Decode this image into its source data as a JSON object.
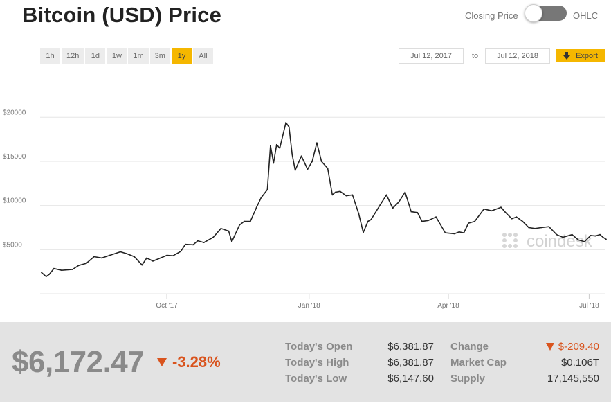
{
  "title": "Bitcoin (USD) Price",
  "toggle": {
    "left_label": "Closing Price",
    "right_label": "OHLC"
  },
  "ranges": [
    {
      "label": "1h",
      "active": false
    },
    {
      "label": "12h",
      "active": false
    },
    {
      "label": "1d",
      "active": false
    },
    {
      "label": "1w",
      "active": false
    },
    {
      "label": "1m",
      "active": false
    },
    {
      "label": "3m",
      "active": false
    },
    {
      "label": "1y",
      "active": true
    },
    {
      "label": "All",
      "active": false
    }
  ],
  "date_range": {
    "from": "Jul 12, 2017",
    "to_label": "to",
    "to": "Jul 12, 2018"
  },
  "export_label": "Export",
  "colors": {
    "accent": "#f5b700",
    "line": "#222222",
    "negative": "#d9541e",
    "muted": "#8a8a8a",
    "panel": "#e3e3e3"
  },
  "watermark": "coindesk",
  "chart_data": {
    "type": "line",
    "title": "Bitcoin (USD) Price",
    "x_range": [
      "2017-07-12",
      "2018-07-12"
    ],
    "ylim": [
      0,
      21000
    ],
    "y_ticks": [
      {
        "value": 5000,
        "label": "$5000"
      },
      {
        "value": 10000,
        "label": "$10000"
      },
      {
        "value": 15000,
        "label": "$15000"
      },
      {
        "value": 20000,
        "label": "$20000"
      }
    ],
    "x_ticks": [
      {
        "date": "2017-10-01",
        "label": "Oct '17"
      },
      {
        "date": "2018-01-01",
        "label": "Jan '18"
      },
      {
        "date": "2018-04-01",
        "label": "Apr '18"
      },
      {
        "date": "2018-07-01",
        "label": "Jul '18"
      }
    ],
    "grid": true,
    "series": [
      {
        "points": [
          [
            "2017-07-12",
            2400
          ],
          [
            "2017-07-15",
            1950
          ],
          [
            "2017-07-17",
            2200
          ],
          [
            "2017-07-20",
            2850
          ],
          [
            "2017-07-25",
            2650
          ],
          [
            "2017-08-01",
            2750
          ],
          [
            "2017-08-05",
            3200
          ],
          [
            "2017-08-10",
            3450
          ],
          [
            "2017-08-15",
            4200
          ],
          [
            "2017-08-20",
            4050
          ],
          [
            "2017-08-25",
            4350
          ],
          [
            "2017-09-01",
            4750
          ],
          [
            "2017-09-05",
            4550
          ],
          [
            "2017-09-10",
            4200
          ],
          [
            "2017-09-15",
            3250
          ],
          [
            "2017-09-18",
            4050
          ],
          [
            "2017-09-22",
            3700
          ],
          [
            "2017-10-01",
            4350
          ],
          [
            "2017-10-05",
            4300
          ],
          [
            "2017-10-10",
            4800
          ],
          [
            "2017-10-13",
            5600
          ],
          [
            "2017-10-18",
            5550
          ],
          [
            "2017-10-21",
            6000
          ],
          [
            "2017-10-25",
            5800
          ],
          [
            "2017-10-31",
            6400
          ],
          [
            "2017-11-05",
            7400
          ],
          [
            "2017-11-10",
            7100
          ],
          [
            "2017-11-12",
            5900
          ],
          [
            "2017-11-17",
            7800
          ],
          [
            "2017-11-20",
            8200
          ],
          [
            "2017-11-24",
            8200
          ],
          [
            "2017-11-28",
            9800
          ],
          [
            "2017-12-01",
            10900
          ],
          [
            "2017-12-05",
            11800
          ],
          [
            "2017-12-07",
            16800
          ],
          [
            "2017-12-09",
            14800
          ],
          [
            "2017-12-11",
            16900
          ],
          [
            "2017-12-13",
            16500
          ],
          [
            "2017-12-17",
            19400
          ],
          [
            "2017-12-19",
            18900
          ],
          [
            "2017-12-21",
            15800
          ],
          [
            "2017-12-23",
            14000
          ],
          [
            "2017-12-27",
            15600
          ],
          [
            "2017-12-31",
            14100
          ],
          [
            "2018-01-03",
            15000
          ],
          [
            "2018-01-06",
            17100
          ],
          [
            "2018-01-09",
            15000
          ],
          [
            "2018-01-13",
            14200
          ],
          [
            "2018-01-16",
            11200
          ],
          [
            "2018-01-18",
            11500
          ],
          [
            "2018-01-21",
            11600
          ],
          [
            "2018-01-25",
            11100
          ],
          [
            "2018-01-29",
            11200
          ],
          [
            "2018-02-02",
            9100
          ],
          [
            "2018-02-05",
            6950
          ],
          [
            "2018-02-08",
            8200
          ],
          [
            "2018-02-10",
            8400
          ],
          [
            "2018-02-16",
            10100
          ],
          [
            "2018-02-20",
            11200
          ],
          [
            "2018-02-24",
            9700
          ],
          [
            "2018-02-28",
            10400
          ],
          [
            "2018-03-04",
            11500
          ],
          [
            "2018-03-08",
            9300
          ],
          [
            "2018-03-12",
            9200
          ],
          [
            "2018-03-15",
            8200
          ],
          [
            "2018-03-19",
            8300
          ],
          [
            "2018-03-24",
            8700
          ],
          [
            "2018-03-30",
            6900
          ],
          [
            "2018-04-05",
            6800
          ],
          [
            "2018-04-08",
            7000
          ],
          [
            "2018-04-11",
            6900
          ],
          [
            "2018-04-14",
            8000
          ],
          [
            "2018-04-18",
            8200
          ],
          [
            "2018-04-24",
            9600
          ],
          [
            "2018-04-29",
            9400
          ],
          [
            "2018-05-05",
            9800
          ],
          [
            "2018-05-08",
            9200
          ],
          [
            "2018-05-12",
            8500
          ],
          [
            "2018-05-15",
            8700
          ],
          [
            "2018-05-19",
            8200
          ],
          [
            "2018-05-23",
            7500
          ],
          [
            "2018-05-27",
            7400
          ],
          [
            "2018-05-31",
            7500
          ],
          [
            "2018-06-05",
            7600
          ],
          [
            "2018-06-10",
            6700
          ],
          [
            "2018-06-14",
            6400
          ],
          [
            "2018-06-20",
            6700
          ],
          [
            "2018-06-24",
            6100
          ],
          [
            "2018-06-28",
            5900
          ],
          [
            "2018-07-02",
            6600
          ],
          [
            "2018-07-05",
            6550
          ],
          [
            "2018-07-08",
            6700
          ],
          [
            "2018-07-10",
            6400
          ],
          [
            "2018-07-12",
            6172
          ]
        ]
      }
    ]
  },
  "stats": {
    "price": "$6,172.47",
    "change_pct": "-3.28%",
    "open_label": "Today's Open",
    "open": "$6,381.87",
    "high_label": "Today's High",
    "high": "$6,381.87",
    "low_label": "Today's Low",
    "low": "$6,147.60",
    "change_label": "Change",
    "change": "$-209.40",
    "mcap_label": "Market Cap",
    "mcap": "$0.106T",
    "supply_label": "Supply",
    "supply": "17,145,550"
  }
}
